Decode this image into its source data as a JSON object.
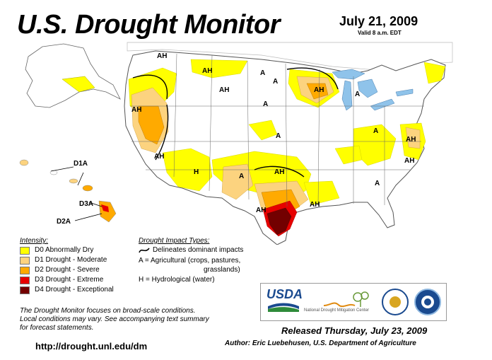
{
  "header": {
    "title": "U.S. Drought Monitor",
    "date": "July 21, 2009",
    "valid": "Valid 8 a.m. EDT"
  },
  "legend": {
    "intensity_title": "Intensity:",
    "items": [
      {
        "label": "D0 Abnormally Dry",
        "color": "#FFFF00"
      },
      {
        "label": "D1 Drought - Moderate",
        "color": "#FCD37F"
      },
      {
        "label": "D2 Drought - Severe",
        "color": "#FFAA00"
      },
      {
        "label": "D3 Drought - Extreme",
        "color": "#E60000"
      },
      {
        "label": "D4 Drought - Exceptional",
        "color": "#730000"
      }
    ],
    "impact_title": "Drought Impact Types:",
    "impact_line": "Delineates dominant impacts",
    "impact_a_1": "A = Agricultural (crops, pastures,",
    "impact_a_2": "grasslands)",
    "impact_h": "H = Hydrological (water)"
  },
  "map_labels": {
    "ah": "AH",
    "a": "A",
    "h": "H",
    "hi_d1a": "D1A",
    "hi_d3a": "D3A",
    "hi_d2a": "D2A"
  },
  "note": {
    "line1": "The Drought Monitor focuses on broad-scale conditions.",
    "line2": "Local conditions may vary. See accompanying text summary",
    "line3": "for forecast statements."
  },
  "footer": {
    "url": "http://drought.unl.edu/dm",
    "released": "Released Thursday, July 23, 2009",
    "author": "Author: Eric Luebehusen, U.S. Department of Agriculture"
  },
  "logos": {
    "usda": "USDA",
    "ndmc": "National Drought Mitigation Center"
  },
  "colors": {
    "water": "#8FC3EA",
    "land": "#FFFFFF",
    "border": "#888888"
  }
}
